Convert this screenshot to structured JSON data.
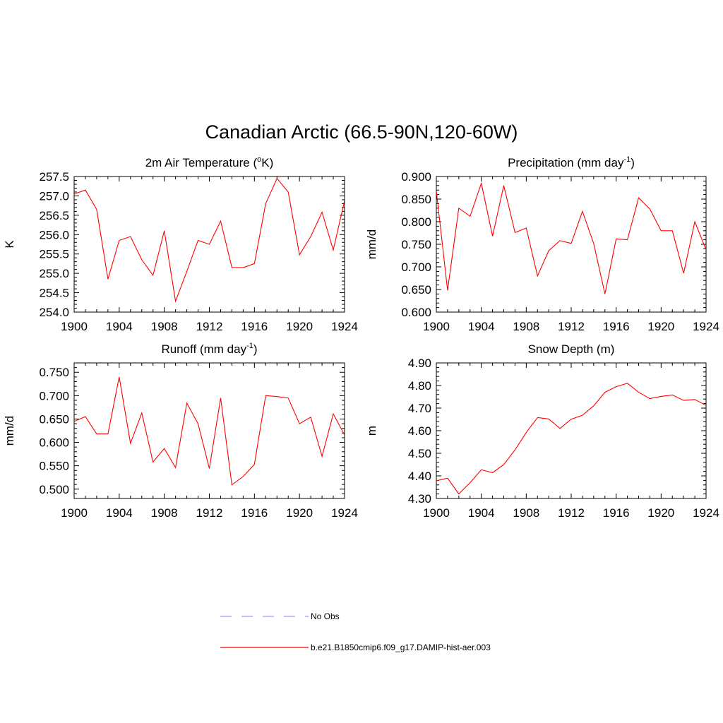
{
  "figure": {
    "title": "Canadian Arctic (66.5-90N,120-60W)"
  },
  "legend": {
    "entries": [
      {
        "label": "No Obs",
        "color": "#9999ff",
        "style": "dashed"
      },
      {
        "label": "b.e21.B1850cmip6.f09_g17.DAMIP-hist-aer.003",
        "color": "#ff0000",
        "style": "solid"
      }
    ]
  },
  "chart_data": [
    {
      "type": "line",
      "title": "2m Air Temperature (oK)",
      "title_parts": {
        "pre": "2m Air Temperature (",
        "sup": "o",
        "post": "K)"
      },
      "ylabel": "K",
      "xlim": [
        1900,
        1924
      ],
      "ylim": [
        254.0,
        257.5
      ],
      "xticks": [
        "1900",
        "1904",
        "1908",
        "1912",
        "1916",
        "1920",
        "1924"
      ],
      "yticks": [
        "254.0",
        "254.5",
        "255.0",
        "255.5",
        "256.0",
        "256.5",
        "257.0",
        "257.5"
      ],
      "color": "#ff0000",
      "series": [
        {
          "name": "b.e21.B1850cmip6.f09_g17.DAMIP-hist-aer.003",
          "x": [
            1900,
            1901,
            1902,
            1903,
            1904,
            1905,
            1906,
            1907,
            1908,
            1909,
            1910,
            1911,
            1912,
            1913,
            1914,
            1915,
            1916,
            1917,
            1918,
            1919,
            1920,
            1921,
            1922,
            1923,
            1924
          ],
          "y": [
            257.05,
            257.15,
            256.65,
            254.85,
            255.85,
            255.95,
            255.35,
            254.95,
            256.1,
            254.28,
            255.05,
            255.85,
            255.75,
            256.35,
            255.15,
            255.15,
            255.25,
            256.8,
            257.45,
            257.1,
            255.48,
            255.95,
            256.58,
            255.6,
            256.88
          ]
        }
      ]
    },
    {
      "type": "line",
      "title": "Precipitation (mm day-1)",
      "title_parts": {
        "pre": "Precipitation (mm day",
        "sup": "-1",
        "post": ")"
      },
      "ylabel": "mm/d",
      "xlim": [
        1900,
        1924
      ],
      "ylim": [
        0.6,
        0.9
      ],
      "xticks": [
        "1900",
        "1904",
        "1908",
        "1912",
        "1916",
        "1920",
        "1924"
      ],
      "yticks": [
        "0.600",
        "0.650",
        "0.700",
        "0.750",
        "0.800",
        "0.850",
        "0.900"
      ],
      "color": "#ff0000",
      "series": [
        {
          "name": "b.e21.B1850cmip6.f09_g17.DAMIP-hist-aer.003",
          "x": [
            1900,
            1901,
            1902,
            1903,
            1904,
            1905,
            1906,
            1907,
            1908,
            1909,
            1910,
            1911,
            1912,
            1913,
            1914,
            1915,
            1916,
            1917,
            1918,
            1919,
            1920,
            1921,
            1922,
            1923,
            1924
          ],
          "y": [
            0.868,
            0.648,
            0.83,
            0.812,
            0.885,
            0.768,
            0.88,
            0.776,
            0.786,
            0.68,
            0.736,
            0.758,
            0.752,
            0.823,
            0.752,
            0.64,
            0.762,
            0.76,
            0.853,
            0.828,
            0.78,
            0.78,
            0.686,
            0.8,
            0.738
          ]
        }
      ]
    },
    {
      "type": "line",
      "title": "Runoff (mm day-1)",
      "title_parts": {
        "pre": "Runoff (mm day",
        "sup": "-1",
        "post": ")"
      },
      "ylabel": "mm/d",
      "xlim": [
        1900,
        1924
      ],
      "ylim": [
        0.48,
        0.77
      ],
      "xticks": [
        "1900",
        "1904",
        "1908",
        "1912",
        "1916",
        "1920",
        "1924"
      ],
      "yticks": [
        "0.500",
        "0.550",
        "0.600",
        "0.650",
        "0.700",
        "0.750"
      ],
      "color": "#ff0000",
      "series": [
        {
          "name": "b.e21.B1850cmip6.f09_g17.DAMIP-hist-aer.003",
          "x": [
            1900,
            1901,
            1902,
            1903,
            1904,
            1905,
            1906,
            1907,
            1908,
            1909,
            1910,
            1911,
            1912,
            1913,
            1914,
            1915,
            1916,
            1917,
            1918,
            1919,
            1920,
            1921,
            1922,
            1923,
            1924
          ],
          "y": [
            0.645,
            0.655,
            0.618,
            0.618,
            0.74,
            0.598,
            0.663,
            0.558,
            0.587,
            0.546,
            0.684,
            0.64,
            0.544,
            0.695,
            0.509,
            0.527,
            0.553,
            0.7,
            0.698,
            0.695,
            0.64,
            0.654,
            0.57,
            0.661,
            0.616
          ]
        }
      ]
    },
    {
      "type": "line",
      "title": "Snow Depth (m)",
      "ylabel": "m",
      "xlim": [
        1900,
        1924
      ],
      "ylim": [
        4.3,
        4.9
      ],
      "xticks": [
        "1900",
        "1904",
        "1908",
        "1912",
        "1916",
        "1920",
        "1924"
      ],
      "yticks": [
        "4.30",
        "4.40",
        "4.50",
        "4.60",
        "4.70",
        "4.80",
        "4.90"
      ],
      "color": "#ff0000",
      "series": [
        {
          "name": "b.e21.B1850cmip6.f09_g17.DAMIP-hist-aer.003",
          "x": [
            1900,
            1901,
            1902,
            1903,
            1904,
            1905,
            1906,
            1907,
            1908,
            1909,
            1910,
            1911,
            1912,
            1913,
            1914,
            1915,
            1916,
            1917,
            1918,
            1919,
            1920,
            1921,
            1922,
            1923,
            1924
          ],
          "y": [
            4.378,
            4.39,
            4.32,
            4.37,
            4.427,
            4.414,
            4.45,
            4.515,
            4.592,
            4.658,
            4.652,
            4.61,
            4.651,
            4.668,
            4.71,
            4.77,
            4.795,
            4.81,
            4.77,
            4.742,
            4.752,
            4.758,
            4.734,
            4.738,
            4.712
          ]
        }
      ]
    }
  ]
}
